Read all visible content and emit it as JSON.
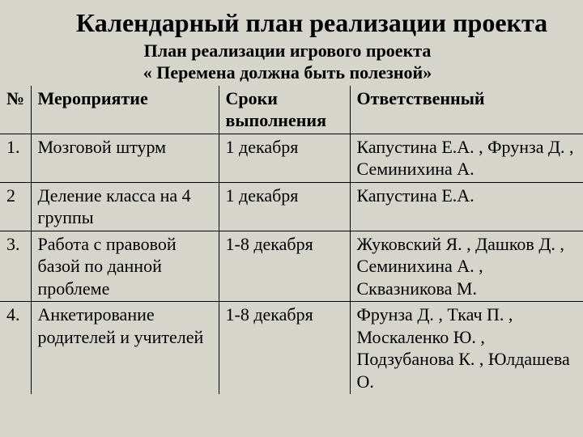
{
  "title": "Календарный план реализации проекта",
  "subtitle_line1": "План реализации игрового проекта",
  "subtitle_line2": "« Перемена должна быть полезной»",
  "table": {
    "headers": {
      "num": "№",
      "event": "Мероприятие",
      "dates": "Сроки выполнения",
      "responsible": "Ответственный"
    },
    "rows": [
      {
        "num": "1.",
        "event": "Мозговой штурм",
        "dates": "1 декабря",
        "responsible": "Капустина Е.А. , Фрунза Д. , Семинихина А."
      },
      {
        "num": "2",
        "event": "Деление класса на 4 группы",
        "dates": "1 декабря",
        "responsible": "Капустина Е.А."
      },
      {
        "num": "3.",
        "event": "Работа с правовой базой по данной проблеме",
        "dates": "1-8 декабря",
        "responsible": "Жуковский Я. , Дашков Д. , Семинихина А. , Сквазникова М."
      },
      {
        "num": "4.",
        "event": "Анкетирование родителей и учителей",
        "dates": "1-8 декабря",
        "responsible": "Фрунза Д. , Ткач П. , Москаленко Ю. , Подзубанова К. , Юлдашева О."
      }
    ]
  },
  "colors": {
    "background": "#d5d5cc",
    "text": "#000000",
    "border": "#000000"
  }
}
